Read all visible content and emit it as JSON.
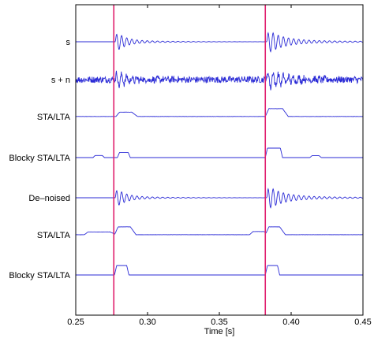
{
  "chart_data": {
    "type": "line",
    "xlabel": "Time [s]",
    "xlim": [
      0.25,
      0.45
    ],
    "xticks": [
      "0.25",
      "0.30",
      "0.35",
      "0.40",
      "0.45"
    ],
    "xtick_values": [
      0.25,
      0.3,
      0.35,
      0.4,
      0.45
    ],
    "grid": false,
    "legend": "none",
    "colors": {
      "trace": "#2b2bd6",
      "marker": "#e0206e",
      "axis": "#000000"
    },
    "markers": [
      0.2765,
      0.382
    ],
    "traces": [
      {
        "label": "s",
        "kind": "wavelet",
        "events": [
          {
            "t": 0.2775,
            "amp": 0.9,
            "dur": 0.006
          },
          {
            "t": 0.383,
            "amp": 1.0,
            "dur": 0.01
          }
        ],
        "noise": 0.0
      },
      {
        "label": "s + n",
        "kind": "wavelet",
        "events": [
          {
            "t": 0.2775,
            "amp": 0.9,
            "dur": 0.006
          },
          {
            "t": 0.383,
            "amp": 1.0,
            "dur": 0.01
          }
        ],
        "noise": 0.35
      },
      {
        "label": "STA/LTA",
        "kind": "envelope",
        "segments": [
          {
            "t0": 0.278,
            "t1": 0.289,
            "amp": 0.55
          },
          {
            "t0": 0.382,
            "t1": 0.394,
            "amp": 1.0
          }
        ],
        "noise": 0.06
      },
      {
        "label": "Blocky STA/LTA",
        "kind": "blocky",
        "segments": [
          {
            "t0": 0.262,
            "t1": 0.27,
            "amp": 0.22
          },
          {
            "t0": 0.279,
            "t1": 0.288,
            "amp": 0.55
          },
          {
            "t0": 0.382,
            "t1": 0.394,
            "amp": 1.0
          },
          {
            "t0": 0.413,
            "t1": 0.421,
            "amp": 0.2
          }
        ],
        "noise": 0.0
      },
      {
        "label": "De–noised",
        "kind": "wavelet",
        "events": [
          {
            "t": 0.2775,
            "amp": 0.85,
            "dur": 0.006
          },
          {
            "t": 0.383,
            "amp": 1.0,
            "dur": 0.01
          }
        ],
        "noise": 0.0
      },
      {
        "label": "STA/LTA",
        "kind": "envelope",
        "segments": [
          {
            "t0": 0.256,
            "t1": 0.274,
            "amp": 0.35
          },
          {
            "t0": 0.277,
            "t1": 0.288,
            "amp": 1.0
          },
          {
            "t0": 0.371,
            "t1": 0.381,
            "amp": 0.4
          },
          {
            "t0": 0.382,
            "t1": 0.392,
            "amp": 1.0
          }
        ],
        "noise": 0.04
      },
      {
        "label": "Blocky STA/LTA",
        "kind": "blocky",
        "segments": [
          {
            "t0": 0.277,
            "t1": 0.287,
            "amp": 1.0
          },
          {
            "t0": 0.382,
            "t1": 0.392,
            "amp": 1.0
          }
        ],
        "noise": 0.0
      }
    ]
  }
}
